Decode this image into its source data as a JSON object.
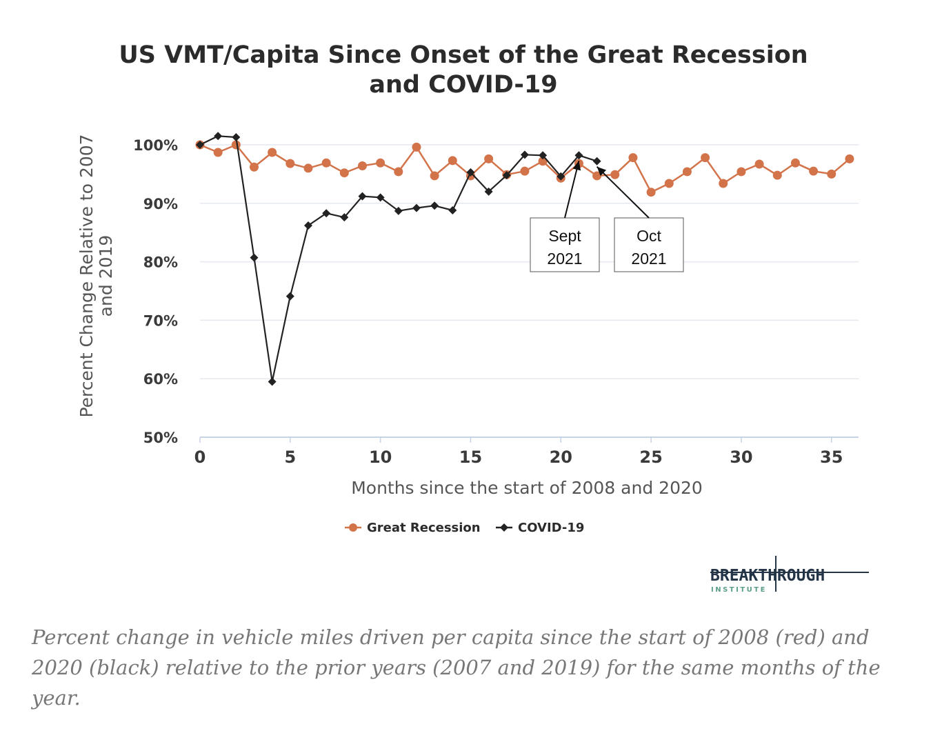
{
  "chart_data": {
    "type": "line",
    "title_lines": [
      "US VMT/Capita Since Onset of the Great Recession",
      "and COVID-19"
    ],
    "xlabel": "Months since the start of 2008 and 2020",
    "ylabel_lines": [
      "Percent Change Relative to 2007",
      "and 2019"
    ],
    "xlim": [
      0,
      36.5
    ],
    "ylim": [
      50,
      100
    ],
    "xticks": [
      0,
      5,
      10,
      15,
      20,
      25,
      30,
      35
    ],
    "yticks": [
      50,
      60,
      70,
      80,
      90,
      100
    ],
    "ytick_labels": [
      "50%",
      "60%",
      "70%",
      "80%",
      "90%",
      "100%"
    ],
    "grid": "horizontal",
    "legend_position": "bottom-center",
    "series": [
      {
        "name": "Great Recession",
        "color": "#d2734a",
        "marker": "circle",
        "x": [
          0,
          1,
          2,
          3,
          4,
          5,
          6,
          7,
          8,
          9,
          10,
          11,
          12,
          13,
          14,
          15,
          16,
          17,
          18,
          19,
          20,
          21,
          22,
          23,
          24,
          25,
          26,
          27,
          28,
          29,
          30,
          31,
          32,
          33,
          34,
          35,
          36
        ],
        "values": [
          100,
          98.7,
          100,
          96.2,
          98.7,
          96.8,
          96.0,
          96.9,
          95.2,
          96.4,
          96.9,
          95.4,
          99.6,
          94.7,
          97.3,
          94.7,
          97.6,
          94.9,
          95.5,
          97.2,
          94.3,
          96.8,
          94.7,
          94.9,
          97.8,
          91.9,
          93.4,
          95.4,
          97.8,
          93.4,
          95.4,
          96.7,
          94.8,
          96.9,
          95.5,
          95.0,
          97.6
        ]
      },
      {
        "name": "COVID-19",
        "color": "#222222",
        "marker": "diamond",
        "x": [
          0,
          1,
          2,
          3,
          4,
          5,
          6,
          7,
          8,
          9,
          10,
          11,
          12,
          13,
          14,
          15,
          16,
          17,
          18,
          19,
          20,
          21,
          22
        ],
        "values": [
          100,
          101.5,
          101.3,
          80.7,
          59.5,
          74.1,
          86.2,
          88.3,
          87.6,
          91.2,
          91.0,
          88.7,
          89.2,
          89.6,
          88.8,
          95.3,
          92.0,
          94.8,
          98.3,
          98.2,
          94.6,
          98.2,
          97.2
        ]
      }
    ],
    "annotations": [
      {
        "lines": [
          "Sept",
          "2021"
        ],
        "target_x": 21,
        "target_y": 98.2
      },
      {
        "lines": [
          "Oct",
          "2021"
        ],
        "target_x": 22,
        "target_y": 97.2
      }
    ]
  },
  "logo": {
    "main": "BREAKTHROUGH",
    "sub": "INSTITUTE"
  },
  "caption": "Percent change in vehicle miles driven per capita since the start of 2008 (red) and 2020 (black) relative to the prior years (2007 and 2019) for the same months of the year."
}
